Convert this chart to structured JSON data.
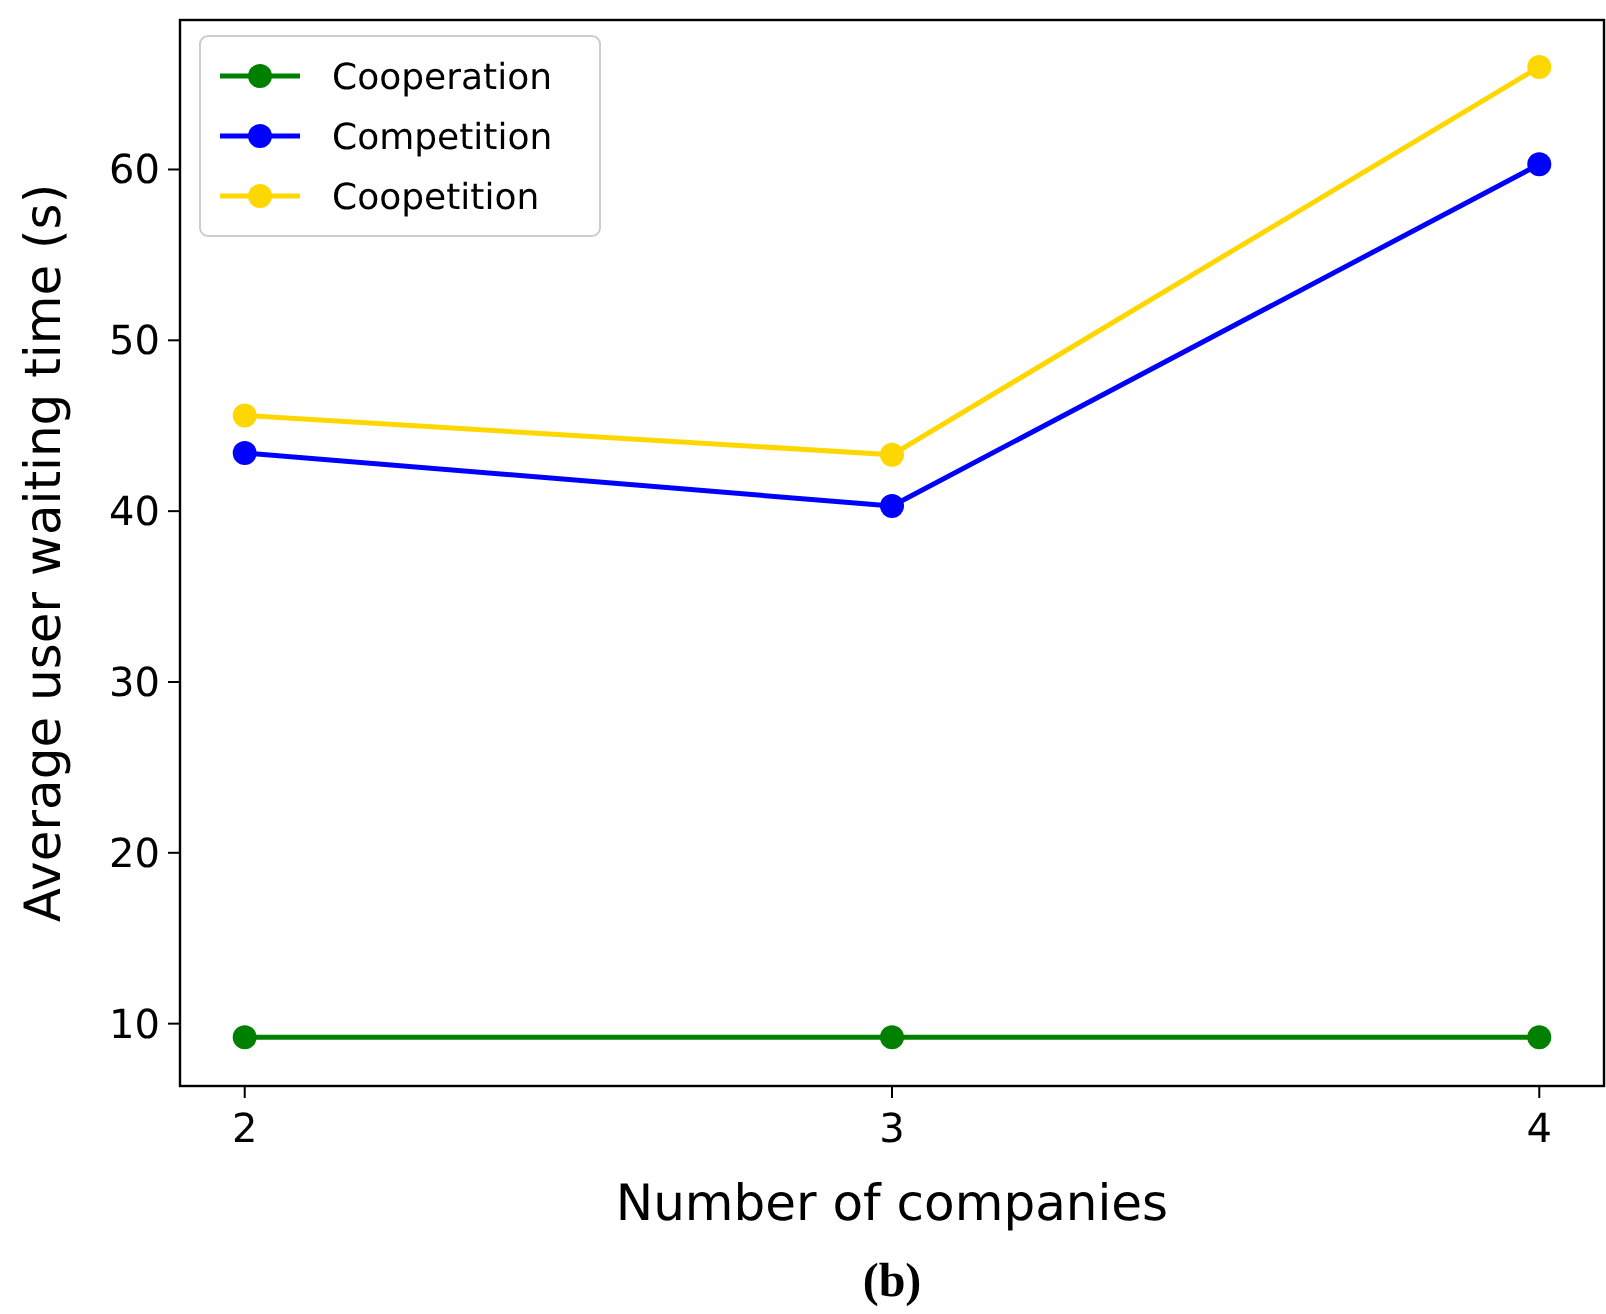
{
  "chart_data": {
    "type": "line",
    "xlabel": "Number of companies",
    "ylabel": "Average user waiting time (s)",
    "annotations": [
      "(b)"
    ],
    "x": [
      2,
      3,
      4
    ],
    "xlim": [
      1.9,
      4.1
    ],
    "xticks": [
      2,
      3,
      4
    ],
    "ylim": [
      6.35,
      68.75
    ],
    "yticks": [
      10,
      20,
      30,
      40,
      50,
      60
    ],
    "series": [
      {
        "name": "Cooperation",
        "color": "#008000",
        "values": [
          9.2,
          9.2,
          9.2
        ]
      },
      {
        "name": "Competition",
        "color": "#0000ff",
        "values": [
          43.4,
          40.3,
          60.3
        ]
      },
      {
        "name": "Coopetition",
        "color": "#ffd700",
        "values": [
          45.6,
          43.3,
          66.0
        ]
      }
    ],
    "marker": "circle",
    "line_style": "solid",
    "legend": "top left",
    "grid": false
  }
}
